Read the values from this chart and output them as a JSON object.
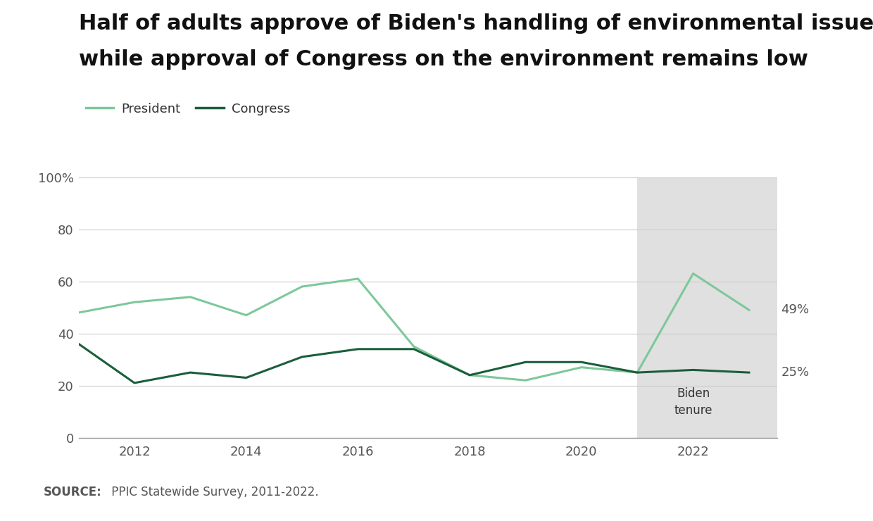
{
  "title_line1": "Half of adults approve of Biden's handling of environmental issues",
  "title_line2": "while approval of Congress on the environment remains low",
  "president_years": [
    2011,
    2012,
    2013,
    2014,
    2015,
    2016,
    2017,
    2018,
    2019,
    2020,
    2021,
    2022,
    2023
  ],
  "president_values": [
    48,
    52,
    54,
    47,
    58,
    61,
    35,
    24,
    22,
    27,
    25,
    63,
    49
  ],
  "congress_years": [
    2011,
    2012,
    2013,
    2014,
    2015,
    2016,
    2017,
    2018,
    2019,
    2020,
    2021,
    2022,
    2023
  ],
  "congress_values": [
    36,
    21,
    25,
    23,
    31,
    34,
    34,
    24,
    29,
    29,
    25,
    26,
    25
  ],
  "president_color": "#7DC89A",
  "congress_color": "#1B5E3B",
  "president_label": "President",
  "congress_label": "Congress",
  "biden_tenure_start": 2021,
  "biden_tenure_end": 2023,
  "biden_tenure_label_line1": "Biden",
  "biden_tenure_label_line2": "tenure",
  "shade_color": "#E0E0E0",
  "ylim_min": 0,
  "ylim_max": 100,
  "yticks": [
    0,
    20,
    40,
    60,
    80,
    100
  ],
  "ytick_labels": [
    "0",
    "20",
    "40",
    "60",
    "80",
    "100%"
  ],
  "xtick_vals": [
    2012,
    2014,
    2016,
    2018,
    2020,
    2022
  ],
  "final_president_value": "49%",
  "final_congress_value": "25%",
  "source_bold": "SOURCE:",
  "source_normal": " PPIC Statewide Survey, 2011-2022.",
  "background_color": "#FFFFFF",
  "footer_background": "#EBEBEB",
  "title_fontsize": 22,
  "tick_fontsize": 13,
  "legend_fontsize": 13,
  "annotation_fontsize": 13,
  "source_fontsize": 12,
  "biden_label_fontsize": 12,
  "line_width": 2.2,
  "xlim_min": 2011,
  "xlim_max": 2023.5
}
